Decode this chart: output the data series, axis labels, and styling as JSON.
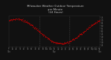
{
  "title": "Milwaukee Weather Outdoor Temperature\nper Minute\n(24 Hours)",
  "bg_color": "#111111",
  "dot_color": "#cc0000",
  "y_ticks": [
    25,
    30,
    35,
    40,
    45,
    50,
    55,
    60,
    65,
    70,
    75
  ],
  "ylim": [
    22,
    78
  ],
  "xlim": [
    0,
    1440
  ],
  "vlines": [
    480,
    960
  ],
  "title_color": "#cccccc",
  "tick_color": "#888888",
  "title_fontsize": 2.8,
  "tick_fontsize": 1.8,
  "ytick_fontsize": 2.0
}
